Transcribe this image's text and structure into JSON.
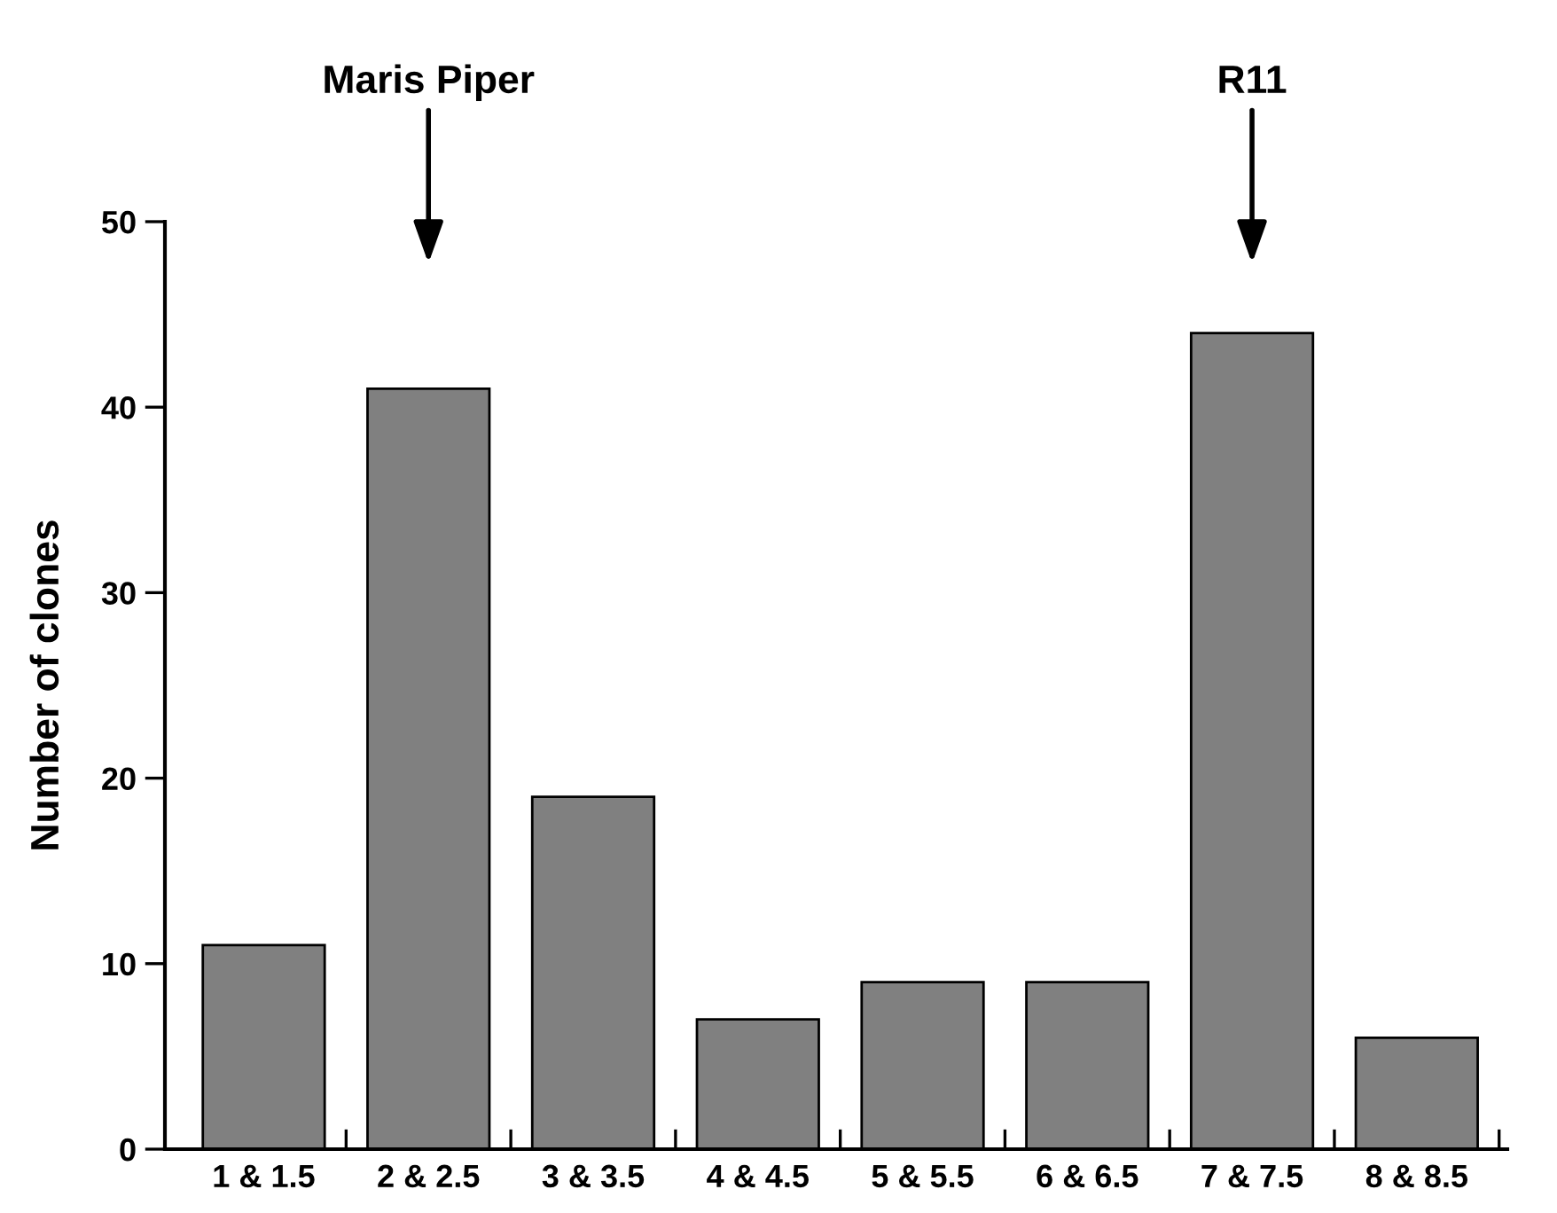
{
  "chart_data": {
    "type": "bar",
    "ylabel": "Number of clones",
    "categories": [
      "1 & 1.5",
      "2 & 2.5",
      "3 & 3.5",
      "4 & 4.5",
      "5 & 5.5",
      "6 & 6.5",
      "7 & 7.5",
      "8 & 8.5"
    ],
    "values": [
      11,
      41,
      19,
      7,
      9,
      9,
      44,
      6
    ],
    "color": "#808080",
    "ylim": [
      0,
      50
    ],
    "yticks": [
      0,
      10,
      20,
      30,
      40,
      50
    ],
    "grid": false,
    "legend": false,
    "annotations": [
      "Maris Piper",
      "R11"
    ]
  }
}
